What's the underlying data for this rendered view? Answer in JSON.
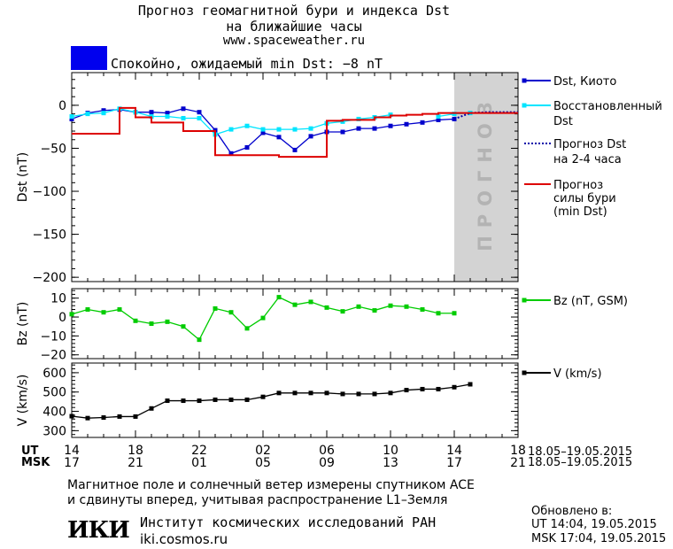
{
  "header": {
    "title_line1": "Прогноз геомагнитной бури и индекса Dst",
    "title_line2": "на ближайшие часы",
    "site": "www.spaceweather.ru",
    "status_text": "Спокойно, ожидаемый min Dst: −8 nT",
    "status_color": "#0000ee"
  },
  "colors": {
    "dst_kyoto": "#0000cc",
    "dst_restored": "#00e5ff",
    "dst_forecast": "#0000aa",
    "storm_forecast": "#dd0000",
    "bz": "#00cc00",
    "v": "#000000",
    "forecast_band": "#d3d3d3",
    "forecast_band_text": "#b3b3b3"
  },
  "chart_data": [
    {
      "type": "line",
      "panel": "dst",
      "ylabel": "Dst (nT)",
      "ylim": [
        -205,
        38
      ],
      "yticks": [
        0,
        -50,
        -100,
        -150,
        -200
      ],
      "xlim": [
        14,
        42
      ],
      "forecast_band": {
        "x_start": 38,
        "x_end": 42,
        "label": "ПРОГНОЗ"
      },
      "series": [
        {
          "name": "Dst, Киото",
          "style": "line-square",
          "x": [
            14,
            15,
            16,
            17,
            18,
            19,
            20,
            21,
            22,
            23,
            24,
            25,
            26,
            27,
            28,
            29,
            30,
            31,
            32,
            33,
            34,
            35,
            36,
            37,
            38
          ],
          "y": [
            -16,
            -9,
            -6,
            -5,
            -8,
            -8,
            -9,
            -4,
            -8,
            -29,
            -56,
            -49,
            -32,
            -37,
            -52,
            -36,
            -31,
            -31,
            -27,
            -27,
            -24,
            -22,
            -20,
            -17,
            -16
          ]
        },
        {
          "name": "Восстановленный Dst",
          "style": "line-square",
          "x": [
            14,
            15,
            16,
            17,
            18,
            19,
            20,
            21,
            22,
            23,
            24,
            25,
            26,
            27,
            28,
            29,
            30,
            31,
            32,
            33,
            34,
            35,
            36,
            37,
            38,
            39
          ],
          "y": [
            -13,
            -10,
            -9,
            -4,
            -8,
            -13,
            -13,
            -15,
            -15,
            -34,
            -28,
            -24,
            -28,
            -28,
            -28,
            -27,
            -21,
            -19,
            -16,
            -14,
            -11,
            null,
            null,
            -13,
            -10,
            -9
          ]
        },
        {
          "name": "Прогноз Dst на 2-4 часа",
          "style": "dotted",
          "x": [
            38,
            39,
            40,
            41,
            42
          ],
          "y": [
            -16,
            -9,
            -8,
            -8,
            -8
          ]
        },
        {
          "name": "Прогноз силы бури (min Dst)",
          "style": "step",
          "x": [
            14,
            16,
            17,
            18,
            19,
            20,
            21,
            23,
            27,
            29,
            30,
            31,
            32,
            33,
            34,
            35,
            36,
            37,
            38,
            39,
            40,
            41,
            42
          ],
          "y": [
            -33,
            -33,
            -3,
            -14,
            -20,
            -20,
            -30,
            -58,
            -60,
            -60,
            -18,
            -17,
            -17,
            -14,
            -12,
            -11,
            -10,
            -9,
            -9,
            -9,
            -9,
            -9,
            -9
          ]
        }
      ]
    },
    {
      "type": "line",
      "panel": "bz",
      "ylabel": "Bz (nT)",
      "ylim": [
        -22,
        15
      ],
      "yticks": [
        10,
        0,
        -10,
        -20
      ],
      "xlim": [
        14,
        42
      ],
      "series": [
        {
          "name": "Bz (nT, GSM)",
          "style": "line-square",
          "x": [
            14,
            15,
            16,
            17,
            18,
            19,
            20,
            21,
            22,
            23,
            24,
            25,
            26,
            27,
            28,
            29,
            30,
            31,
            32,
            33,
            34,
            35,
            36,
            37,
            38,
            39
          ],
          "y": [
            1.5,
            4,
            2.5,
            4,
            -2,
            -3.5,
            -2.5,
            -5,
            -12,
            4.5,
            2.5,
            -6,
            -0.5,
            10.5,
            6.5,
            8,
            5,
            3,
            5.5,
            3.5,
            6,
            5.5,
            4,
            2,
            2,
            null
          ]
        }
      ]
    },
    {
      "type": "line",
      "panel": "v",
      "ylabel": "V (km/s)",
      "ylim": [
        265,
        650
      ],
      "yticks": [
        600,
        500,
        400,
        300
      ],
      "xlim": [
        14,
        42
      ],
      "series": [
        {
          "name": "V (km/s)",
          "style": "line-square",
          "x": [
            14,
            15,
            16,
            17,
            18,
            19,
            20,
            21,
            22,
            23,
            24,
            25,
            26,
            27,
            28,
            29,
            30,
            31,
            32,
            33,
            34,
            35,
            36,
            37,
            38,
            39
          ],
          "y": [
            375,
            365,
            368,
            373,
            373,
            415,
            455,
            455,
            455,
            460,
            460,
            460,
            475,
            495,
            495,
            495,
            495,
            490,
            490,
            490,
            495,
            510,
            515,
            515,
            525,
            540
          ]
        }
      ]
    }
  ],
  "x_axis": {
    "ut_label": "UT",
    "msk_label": "MSK",
    "ut_ticks": [
      "14",
      "18",
      "22",
      "02",
      "06",
      "10",
      "14",
      "18"
    ],
    "msk_ticks": [
      "17",
      "21",
      "01",
      "05",
      "09",
      "13",
      "17",
      "21"
    ],
    "range_ut": "18.05–19.05.2015",
    "range_msk": "18.05–19.05.2015"
  },
  "legend": {
    "dst_kyoto": "Dst, Киото",
    "restored_line1": "Восстановленный",
    "restored_line2": "Dst",
    "forecast_line1": "Прогноз Dst",
    "forecast_line2": "на 2-4 часа",
    "storm_line1": "Прогноз",
    "storm_line2": "силы бури",
    "storm_line3": "(min Dst)",
    "bz": "Bz (nT, GSM)",
    "v": "V (km/s)"
  },
  "footer": {
    "line1": "Магнитное поле и солнечный ветер измерены спутником ACE",
    "line2": "и сдвинуты вперед, учитывая распространение L1–Земля",
    "logo": "ИКИ",
    "institute": "Институт космических исследований РАН",
    "institute_url": "iki.cosmos.ru",
    "updated_label": "Обновлено в:",
    "updated_ut": "UT   14:04, 19.05.2015",
    "updated_msk": "MSK 17:04, 19.05.2015"
  }
}
